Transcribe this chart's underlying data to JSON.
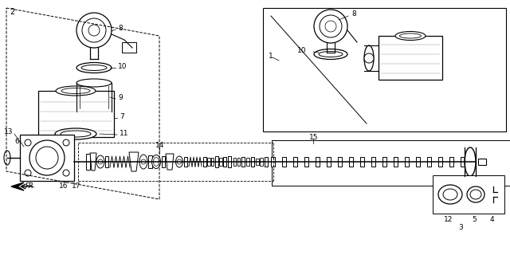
{
  "bg_color": "#ffffff",
  "line_color": "#000000"
}
